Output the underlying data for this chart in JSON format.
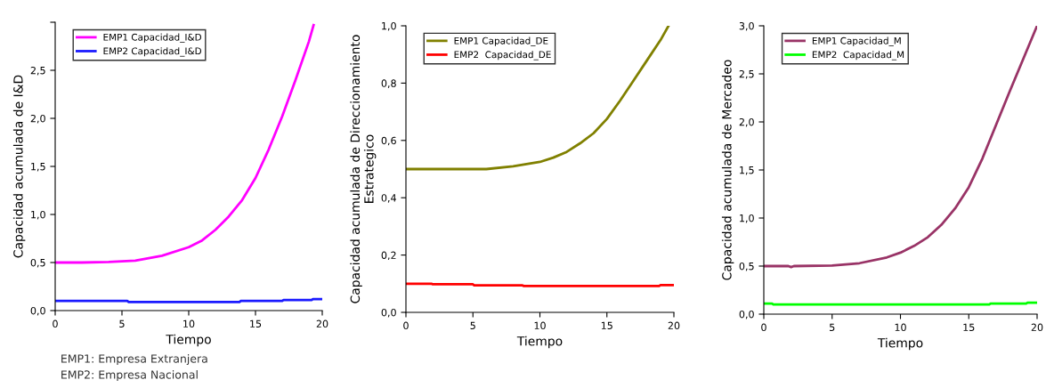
{
  "chart_data": [
    {
      "type": "line",
      "ylabel": "Capacidad acumulada de I&D",
      "xlabel": "Tiempo",
      "xlim": [
        0,
        20
      ],
      "xticks": [
        0,
        5,
        10,
        15,
        20
      ],
      "ylim": [
        0,
        3
      ],
      "yticks": [
        {
          "value": 0,
          "label": "0,0"
        },
        {
          "value": 0.5,
          "label": "0,5"
        },
        {
          "value": 1,
          "label": "1,0"
        },
        {
          "value": 1.5,
          "label": "1,5"
        },
        {
          "value": 2,
          "label": "2,0"
        },
        {
          "value": 2.5,
          "label": "2,5"
        },
        {
          "value": 3,
          "label": null
        }
      ],
      "grid": false,
      "legend": "top left",
      "line_style": "solid",
      "marker": "none",
      "annotations": [
        "EMP1: Empresa Extranjera",
        "EMP2: Empresa Nacional"
      ],
      "series": [
        {
          "name": "EMP1 Capacidad_I&D",
          "color": "#ff00ff",
          "x": [
            0,
            2,
            4,
            6,
            8,
            10,
            11,
            12,
            13,
            14,
            15,
            16,
            17,
            18,
            19,
            19.35
          ],
          "values": [
            0.5,
            0.5,
            0.505,
            0.52,
            0.57,
            0.66,
            0.73,
            0.84,
            0.98,
            1.15,
            1.38,
            1.68,
            2.02,
            2.4,
            2.8,
            2.97
          ]
        },
        {
          "name": "EMP2 Capacidad_I&D",
          "color": "#1a1aff",
          "x": [
            0,
            5.4,
            5.5,
            13.8,
            13.9,
            17,
            17.1,
            19.2,
            19.3,
            20
          ],
          "values": [
            0.1,
            0.1,
            0.09,
            0.09,
            0.1,
            0.1,
            0.11,
            0.11,
            0.12,
            0.12
          ]
        }
      ]
    },
    {
      "type": "line",
      "ylabel": "Capacidad acumulada de Direccionamiento\nEstrategico",
      "xlabel": "Tiempo",
      "xlim": [
        0,
        20
      ],
      "xticks": [
        0,
        5,
        10,
        15,
        20
      ],
      "ylim": [
        0,
        1
      ],
      "yticks": [
        {
          "value": 0,
          "label": "0,0"
        },
        {
          "value": 0.2,
          "label": "0,2"
        },
        {
          "value": 0.4,
          "label": "0,4"
        },
        {
          "value": 0.6,
          "label": "0,6"
        },
        {
          "value": 0.8,
          "label": "0,8"
        },
        {
          "value": 1,
          "label": "1,0"
        }
      ],
      "grid": false,
      "legend": "top left",
      "line_style": "solid",
      "marker": "none",
      "series": [
        {
          "name": "EMP1 Capacidad_DE",
          "color": "#808000",
          "x": [
            0,
            6,
            8,
            10,
            11,
            12,
            13,
            14,
            15,
            16,
            17,
            18,
            19,
            19.6
          ],
          "values": [
            0.5,
            0.5,
            0.51,
            0.525,
            0.54,
            0.56,
            0.59,
            0.625,
            0.675,
            0.74,
            0.81,
            0.88,
            0.95,
            1.0
          ]
        },
        {
          "name": "EMP2  Capacidad_DE",
          "color": "#ff0000",
          "x": [
            0,
            1.9,
            2,
            5,
            5.1,
            8.7,
            8.8,
            18.9,
            19,
            20
          ],
          "values": [
            0.1,
            0.1,
            0.098,
            0.098,
            0.094,
            0.094,
            0.092,
            0.092,
            0.095,
            0.095
          ]
        }
      ]
    },
    {
      "type": "line",
      "ylabel": "Capacidad acumulada de Mercadeo",
      "xlabel": "Tiempo",
      "xlim": [
        0,
        20
      ],
      "xticks": [
        0,
        5,
        10,
        15,
        20
      ],
      "ylim": [
        0,
        3
      ],
      "yticks": [
        {
          "value": 0,
          "label": "0,0"
        },
        {
          "value": 0.5,
          "label": "0,5"
        },
        {
          "value": 1,
          "label": "1,0"
        },
        {
          "value": 1.5,
          "label": "1,5"
        },
        {
          "value": 2,
          "label": "2,0"
        },
        {
          "value": 2.5,
          "label": "2,5"
        },
        {
          "value": 3,
          "label": "3,0"
        }
      ],
      "grid": false,
      "legend": "top left",
      "line_style": "solid",
      "marker": "none",
      "series": [
        {
          "name": "EMP1 Capacidad_M",
          "color": "#993366",
          "x": [
            0,
            1.8,
            2,
            2.2,
            5,
            7,
            9,
            10,
            11,
            12,
            13,
            14,
            15,
            16,
            17,
            18,
            19,
            20
          ],
          "values": [
            0.5,
            0.5,
            0.49,
            0.5,
            0.505,
            0.53,
            0.59,
            0.64,
            0.71,
            0.8,
            0.93,
            1.1,
            1.32,
            1.62,
            1.97,
            2.32,
            2.66,
            3.0
          ]
        },
        {
          "name": "EMP2  Capacidad_M",
          "color": "#00ff00",
          "x": [
            0,
            0.6,
            0.7,
            16.5,
            16.6,
            19.2,
            19.3,
            20
          ],
          "values": [
            0.11,
            0.11,
            0.1,
            0.1,
            0.11,
            0.11,
            0.12,
            0.12
          ]
        }
      ]
    }
  ]
}
